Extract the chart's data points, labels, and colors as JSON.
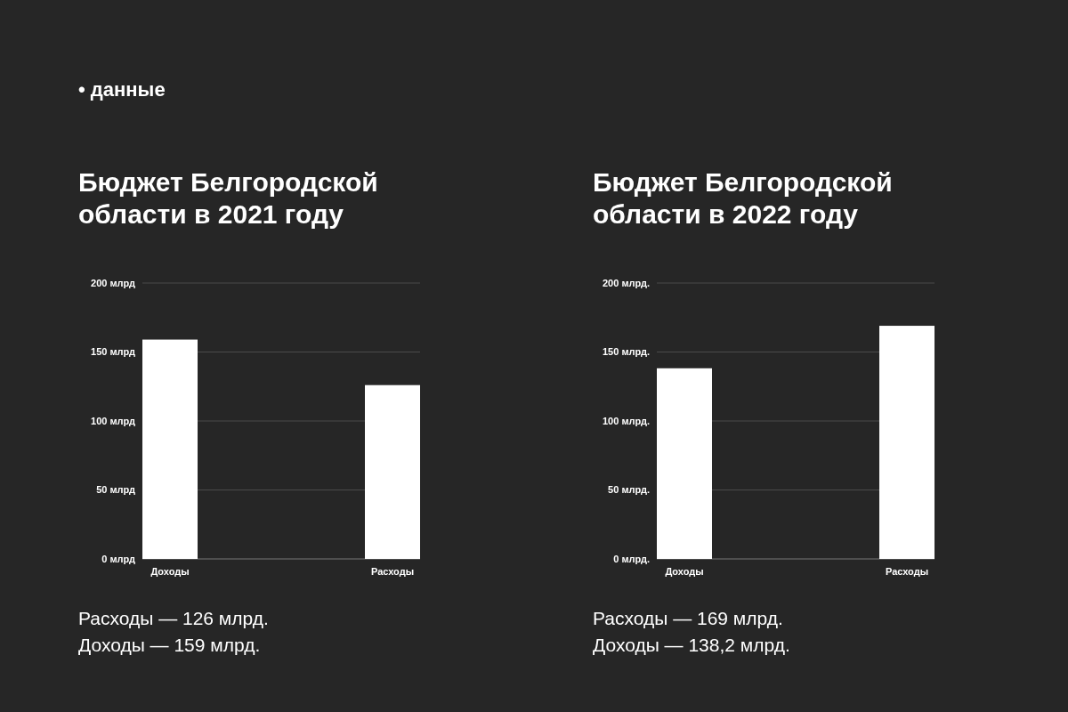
{
  "chart_data": [
    {
      "type": "bar",
      "title": "Бюджет Белгородской области в 2021 году",
      "categories": [
        "Доходы",
        "Расходы"
      ],
      "values": [
        159,
        126
      ],
      "color": "#ffffff",
      "ylim": [
        0,
        200
      ],
      "yticks": [
        {
          "value": 0,
          "label": "0 млрд"
        },
        {
          "value": 50,
          "label": "50 млрд"
        },
        {
          "value": 100,
          "label": "100 млрд"
        },
        {
          "value": 150,
          "label": "150 млрд"
        },
        {
          "value": 200,
          "label": "200 млрд"
        }
      ],
      "grid": "y",
      "annotations": [
        "• данные",
        "Расходы — 126 млрд.",
        "Доходы — 159 млрд."
      ]
    },
    {
      "type": "bar",
      "title": "Бюджет Белгородской области в 2022 году",
      "categories": [
        "Доходы",
        "Расходы"
      ],
      "values": [
        138.2,
        169
      ],
      "color": "#ffffff",
      "ylim": [
        0,
        200
      ],
      "yticks": [
        {
          "value": 0,
          "label": "0 млрд."
        },
        {
          "value": 50,
          "label": "50 млрд."
        },
        {
          "value": 100,
          "label": "100 млрд."
        },
        {
          "value": 150,
          "label": "150 млрд."
        },
        {
          "value": 200,
          "label": "200 млрд."
        }
      ],
      "grid": "y",
      "annotations": [
        "Расходы — 169 млрд.",
        "Доходы — 138,2 млрд."
      ]
    }
  ]
}
